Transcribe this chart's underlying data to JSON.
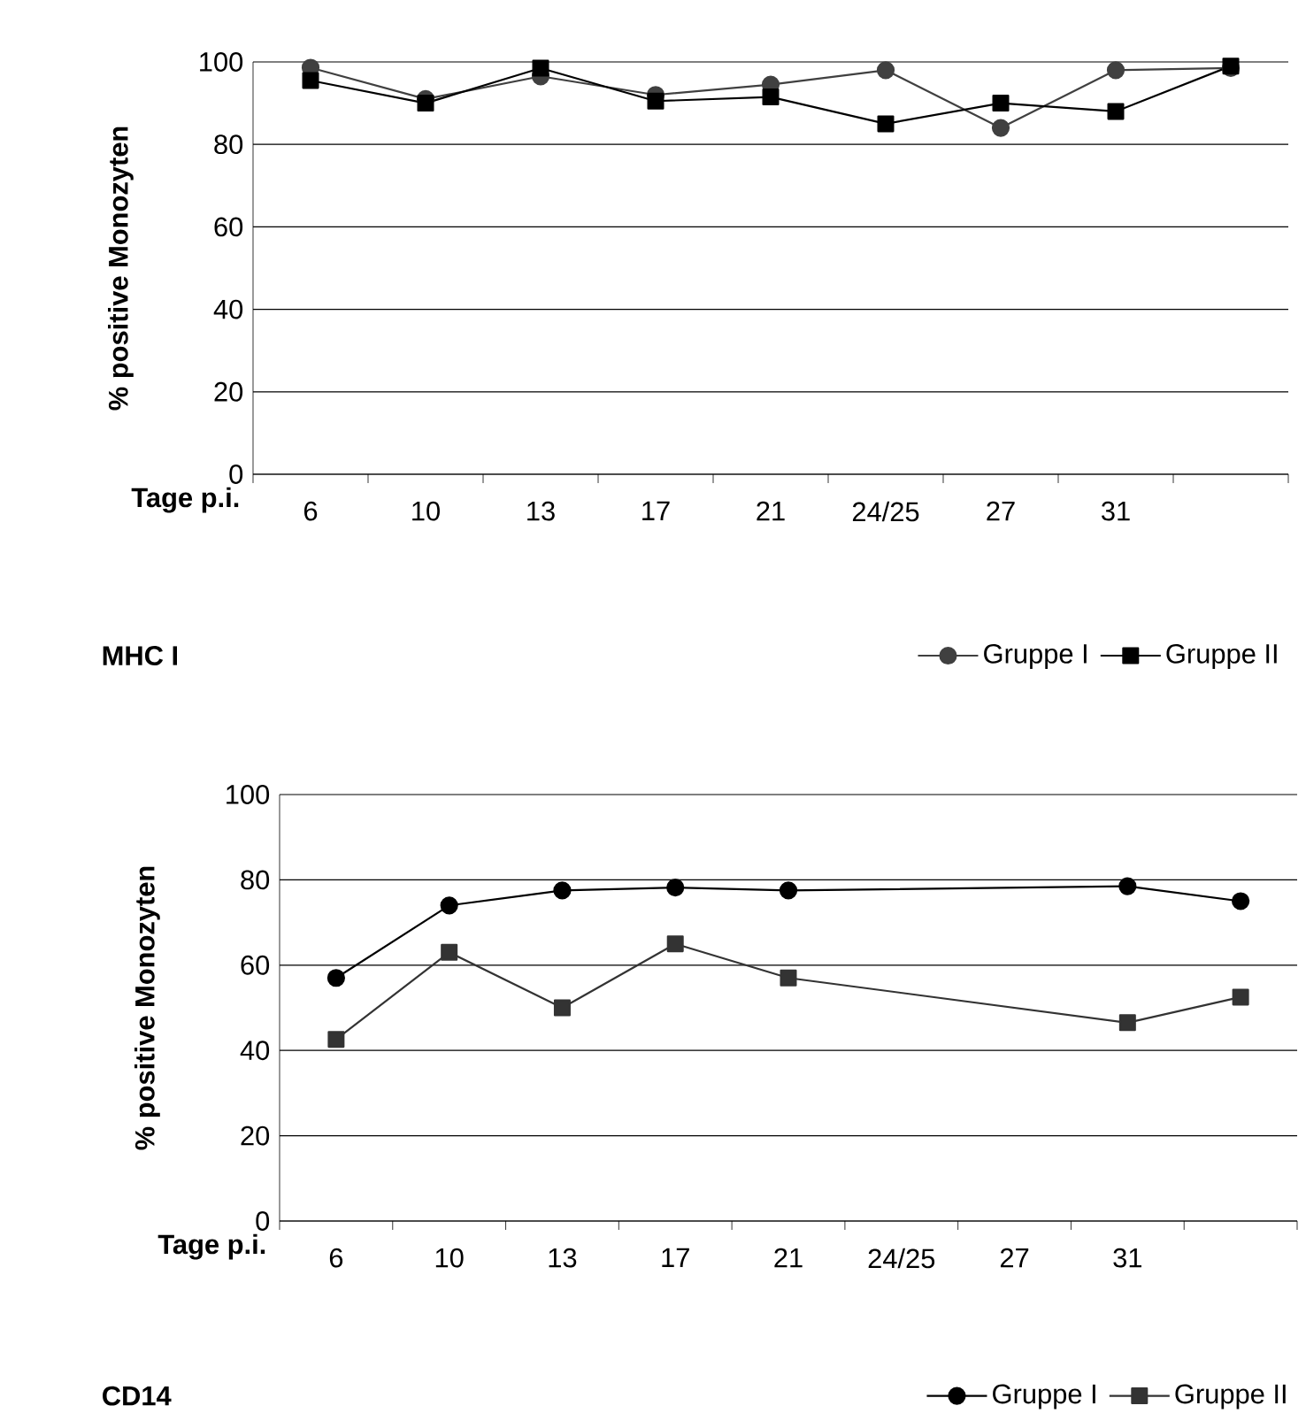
{
  "chart_data": [
    {
      "type": "line",
      "title": "MHC I",
      "xlabel": "Tage p.i.",
      "ylabel": "% positive Monozyten",
      "categories": [
        "6",
        "10",
        "13",
        "17",
        "21",
        "24/25",
        "27",
        "31",
        null
      ],
      "series": [
        {
          "name": "Gruppe I",
          "color": "#404040",
          "marker": "circle",
          "values": [
            98.6,
            91,
            96.5,
            92,
            94.5,
            98,
            84,
            98,
            98.5
          ]
        },
        {
          "name": "Gruppe II",
          "color": "#000000",
          "marker": "square",
          "values": [
            95.5,
            90,
            98.5,
            90.5,
            91.5,
            85,
            90,
            88,
            99
          ]
        }
      ],
      "ylim": [
        0,
        100
      ],
      "yticks": [
        0,
        20,
        40,
        60,
        80,
        100
      ],
      "grid": "y",
      "legend": "bottom right",
      "line_style": "solid"
    },
    {
      "type": "line",
      "title": "CD14",
      "xlabel": "Tage p.i.",
      "ylabel": "% positive Monozyten",
      "categories": [
        "6",
        "10",
        "13",
        "17",
        "21",
        "24/25",
        "27",
        "31",
        null
      ],
      "series": [
        {
          "name": "Gruppe I",
          "color": "#000000",
          "marker": "circle",
          "values": [
            57,
            74,
            77.5,
            78.2,
            77.5,
            null,
            null,
            78.5,
            75
          ]
        },
        {
          "name": "Gruppe II",
          "color": "#333333",
          "marker": "square",
          "values": [
            42.6,
            63,
            50,
            65,
            57,
            null,
            null,
            46.5,
            52.5
          ]
        }
      ],
      "ylim": [
        0,
        100
      ],
      "yticks": [
        0,
        20,
        40,
        60,
        80,
        100
      ],
      "grid": "y",
      "legend": "bottom right",
      "line_style": "solid"
    }
  ]
}
